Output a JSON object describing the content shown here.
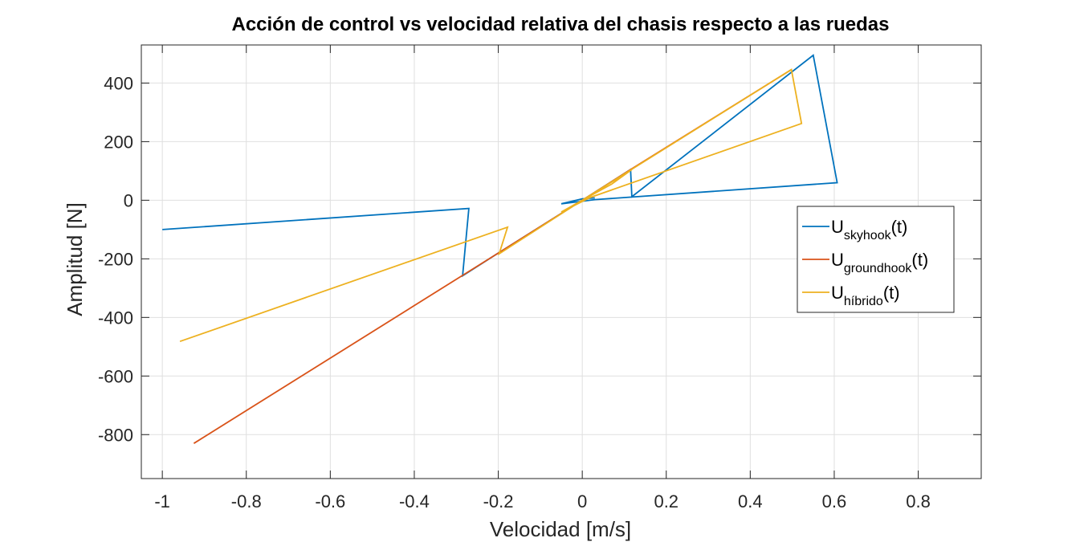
{
  "chart_data": {
    "type": "line",
    "title": "Acción de control vs velocidad relativa del chasis respecto a las ruedas",
    "xlabel": "Velocidad [m/s]",
    "ylabel": "Amplitud [N]",
    "xlim": [
      -1.05,
      0.95
    ],
    "ylim": [
      -950,
      530
    ],
    "xticks": [
      -1,
      -0.8,
      -0.6,
      -0.4,
      -0.2,
      0,
      0.2,
      0.4,
      0.6,
      0.8
    ],
    "xtick_labels": [
      "-1",
      "-0.8",
      "-0.6",
      "-0.4",
      "-0.2",
      "0",
      "0.2",
      "0.4",
      "0.6",
      "0.8"
    ],
    "yticks": [
      -800,
      -600,
      -400,
      -200,
      0,
      200,
      400
    ],
    "ytick_labels": [
      "-800",
      "-600",
      "-400",
      "-200",
      "0",
      "200",
      "400"
    ],
    "grid": true,
    "legend_position": "right",
    "legend_box": true,
    "series": [
      {
        "key": "skyhook",
        "legend_base": "U",
        "legend_sub": "skyhook",
        "legend_suffix": "(t)",
        "color": "#0072BD",
        "x": [
          -1.0,
          -0.27,
          -0.285,
          -0.2,
          0.0,
          0.115,
          0.118,
          0.55,
          0.607,
          0.03,
          -0.05,
          0.0,
          0.03
        ],
        "y": [
          -100,
          -28,
          -258,
          -180,
          0,
          105,
          12,
          495,
          60,
          2,
          -12,
          5,
          8
        ]
      },
      {
        "key": "groundhook",
        "legend_base": "U",
        "legend_sub": "groundhook",
        "legend_suffix": "(t)",
        "color": "#D95319",
        "x": [
          -0.925,
          -0.2,
          0.0,
          0.115,
          0.497
        ],
        "y": [
          -830,
          -180,
          0,
          105,
          445
        ]
      },
      {
        "key": "hibrido",
        "legend_base": "U",
        "legend_sub": "híbrido",
        "legend_suffix": "(t)",
        "color": "#EDB120",
        "x": [
          -0.958,
          -0.178,
          -0.198,
          0.0,
          0.498,
          0.522,
          0.0,
          0.07,
          0.118,
          0.0,
          -0.05,
          0.02
        ],
        "y": [
          -482,
          -92,
          -183,
          0,
          446,
          262,
          0,
          55,
          105,
          0,
          -40,
          10
        ]
      }
    ]
  }
}
